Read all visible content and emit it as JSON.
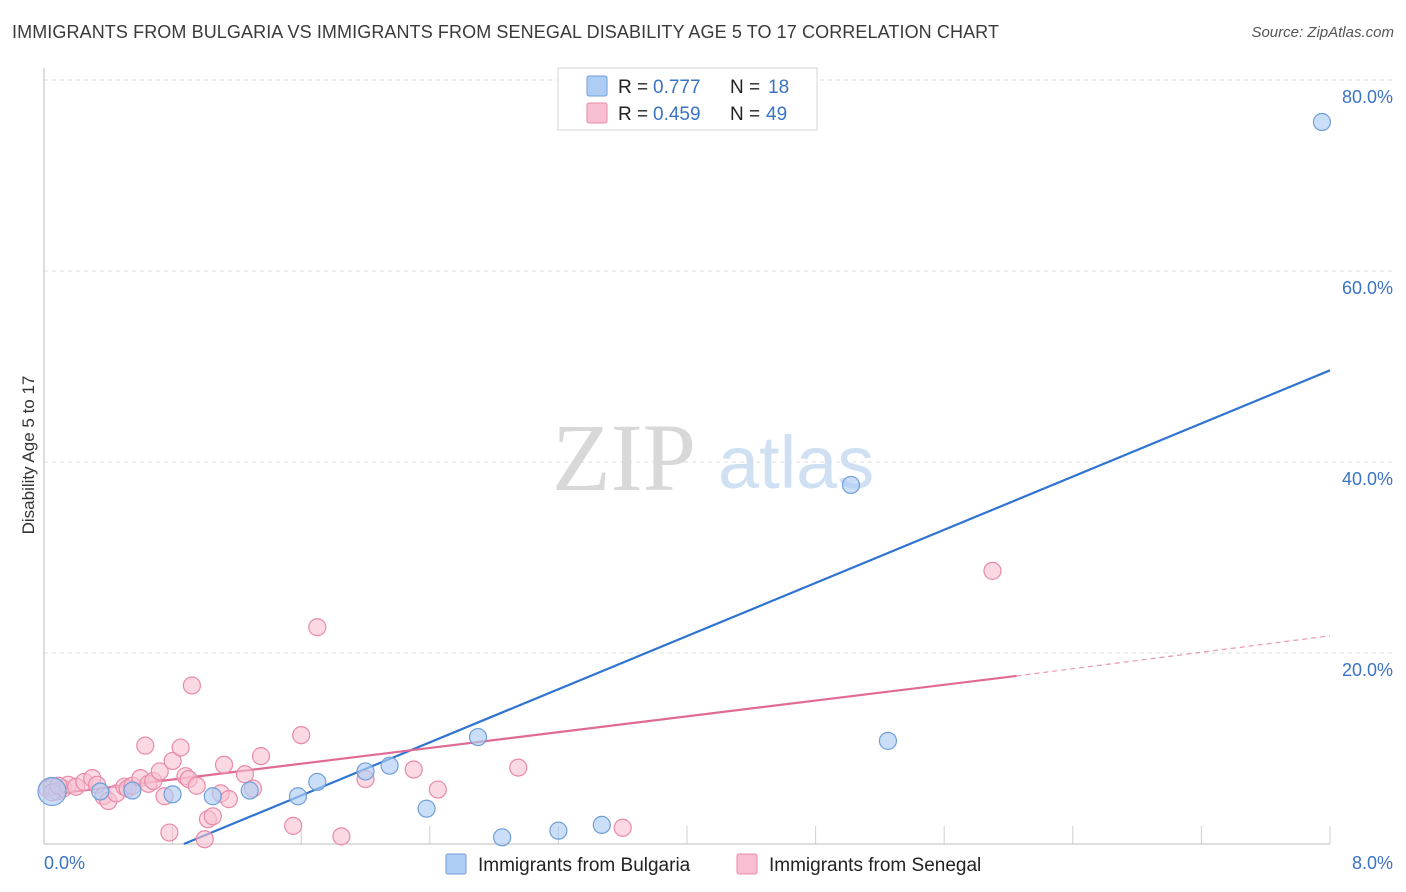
{
  "header": {
    "title": "IMMIGRANTS FROM BULGARIA VS IMMIGRANTS FROM SENEGAL DISABILITY AGE 5 TO 17 CORRELATION CHART",
    "source": "Source: ZipAtlas.com"
  },
  "watermark": {
    "zip": "ZIP",
    "atlas": "atlas"
  },
  "colors": {
    "blue_fill": "#aecdf5",
    "blue_stroke": "#6f9fd8",
    "blue_line": "#2f74d0",
    "pink_fill": "#f7bfd1",
    "pink_stroke": "#e98aa9",
    "pink_line": "#e06a95",
    "tick": "#3b73c4",
    "grid": "#dcdcdc"
  },
  "legend": {
    "r_label": "R =",
    "n_label": "N =",
    "rows": [
      {
        "r": "0.777",
        "n": "18"
      },
      {
        "r": "0.459",
        "n": "49"
      }
    ]
  },
  "chart_data": {
    "type": "scatter",
    "title": "IMMIGRANTS FROM BULGARIA VS IMMIGRANTS FROM SENEGAL DISABILITY AGE 5 TO 17 CORRELATION CHART",
    "xlabel": "",
    "ylabel": "Disability Age 5 to 17",
    "xlim": [
      0,
      8
    ],
    "ylim": [
      0,
      80
    ],
    "x_tick_labels": [
      "0.0%",
      "8.0%"
    ],
    "y_ticks": [
      20,
      40,
      60,
      80
    ],
    "y_tick_labels": [
      "20.0%",
      "40.0%",
      "60.0%",
      "80.0%"
    ],
    "grid": true,
    "legend_position": "top-center",
    "series": [
      {
        "name": "Immigrants from Bulgaria",
        "color": "#6f9fd8",
        "points": [
          [
            0.05,
            5.5
          ],
          [
            0.35,
            5.5
          ],
          [
            0.55,
            5.6
          ],
          [
            0.8,
            5.2
          ],
          [
            1.05,
            5.0
          ],
          [
            1.28,
            5.6
          ],
          [
            1.58,
            5.0
          ],
          [
            1.7,
            6.5
          ],
          [
            2.0,
            7.6
          ],
          [
            2.15,
            8.2
          ],
          [
            2.38,
            3.7
          ],
          [
            2.7,
            11.2
          ],
          [
            2.85,
            0.7
          ],
          [
            3.2,
            1.4
          ],
          [
            3.47,
            2.0
          ],
          [
            5.02,
            37.6
          ],
          [
            5.25,
            10.8
          ],
          [
            7.95,
            75.6
          ]
        ],
        "trendline": {
          "x": [
            0.87,
            8.0
          ],
          "y": [
            0.0,
            49.6
          ]
        }
      },
      {
        "name": "Immigrants from Senegal",
        "color": "#e98aa9",
        "points": [
          [
            0.02,
            5.8
          ],
          [
            0.05,
            6.0
          ],
          [
            0.08,
            5.5
          ],
          [
            0.12,
            5.8
          ],
          [
            0.15,
            6.2
          ],
          [
            0.2,
            6.0
          ],
          [
            0.25,
            6.5
          ],
          [
            0.3,
            6.9
          ],
          [
            0.33,
            6.2
          ],
          [
            0.37,
            5.0
          ],
          [
            0.4,
            4.5
          ],
          [
            0.45,
            5.3
          ],
          [
            0.5,
            6.0
          ],
          [
            0.52,
            5.8
          ],
          [
            0.55,
            6.1
          ],
          [
            0.6,
            6.9
          ],
          [
            0.63,
            10.3
          ],
          [
            0.65,
            6.3
          ],
          [
            0.68,
            6.6
          ],
          [
            0.72,
            7.6
          ],
          [
            0.75,
            5.0
          ],
          [
            0.78,
            1.2
          ],
          [
            0.8,
            8.7
          ],
          [
            0.85,
            10.1
          ],
          [
            0.88,
            7.1
          ],
          [
            0.9,
            6.8
          ],
          [
            0.92,
            16.6
          ],
          [
            0.95,
            6.1
          ],
          [
            1.0,
            0.5
          ],
          [
            1.02,
            2.6
          ],
          [
            1.05,
            2.9
          ],
          [
            1.1,
            5.3
          ],
          [
            1.12,
            8.3
          ],
          [
            1.15,
            4.7
          ],
          [
            1.25,
            7.3
          ],
          [
            1.3,
            5.8
          ],
          [
            1.35,
            9.2
          ],
          [
            1.55,
            1.9
          ],
          [
            1.6,
            11.4
          ],
          [
            1.7,
            22.7
          ],
          [
            1.85,
            0.8
          ],
          [
            2.0,
            6.8
          ],
          [
            2.3,
            7.8
          ],
          [
            2.45,
            5.7
          ],
          [
            2.95,
            8.0
          ],
          [
            3.6,
            1.7
          ],
          [
            5.9,
            28.6
          ],
          [
            0.05,
            5.4
          ],
          [
            0.09,
            6.1
          ]
        ],
        "trendline": {
          "x": [
            0.0,
            6.05
          ],
          "y": [
            5.1,
            17.6
          ]
        },
        "trendline_extension": {
          "x": [
            6.05,
            8.0
          ],
          "y": [
            17.6,
            21.8
          ]
        }
      }
    ]
  }
}
